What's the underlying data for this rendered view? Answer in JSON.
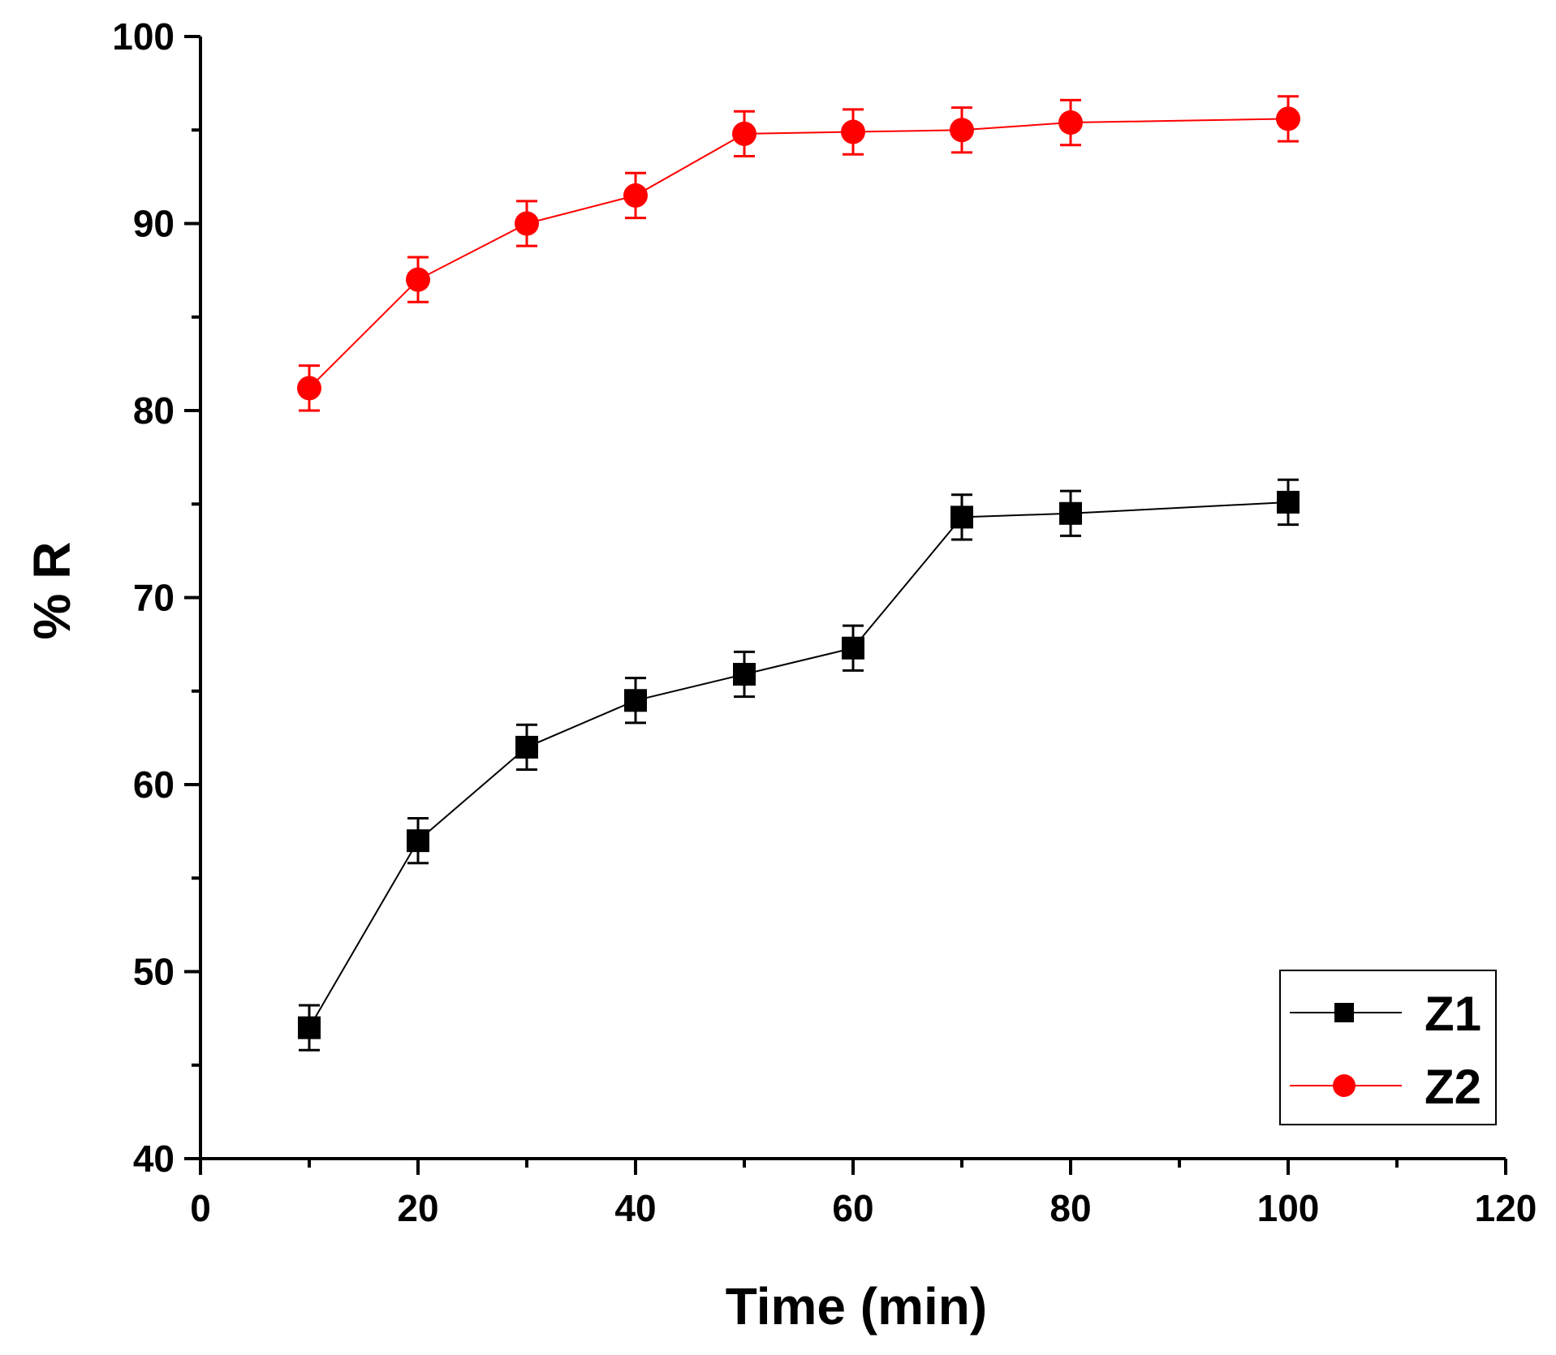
{
  "chart_data": {
    "type": "line",
    "title": "",
    "xlabel": "Time (min)",
    "ylabel": "% R",
    "xlim": [
      0,
      120
    ],
    "ylim": [
      40,
      100
    ],
    "xticks": [
      0,
      20,
      40,
      60,
      80,
      100,
      120
    ],
    "yticks": [
      40,
      50,
      60,
      70,
      80,
      90,
      100
    ],
    "xtick_labels": [
      "0",
      "20",
      "40",
      "60",
      "80",
      "100",
      "120"
    ],
    "ytick_labels": [
      "40",
      "50",
      "60",
      "70",
      "80",
      "90",
      "100"
    ],
    "grid": false,
    "legend_position": "bottom-right",
    "series": [
      {
        "name": "Z1",
        "marker": "square",
        "color": "#000000",
        "x": [
          10,
          20,
          30,
          40,
          50,
          60,
          70,
          80,
          100
        ],
        "y": [
          47.0,
          57.0,
          62.0,
          64.5,
          65.9,
          67.3,
          74.3,
          74.5,
          75.1
        ],
        "error": [
          1.2,
          1.2,
          1.2,
          1.2,
          1.2,
          1.2,
          1.2,
          1.2,
          1.2
        ]
      },
      {
        "name": "Z2",
        "marker": "circle",
        "color": "#ff0000",
        "x": [
          10,
          20,
          30,
          40,
          50,
          60,
          70,
          80,
          100
        ],
        "y": [
          81.2,
          87.0,
          90.0,
          91.5,
          94.8,
          94.9,
          95.0,
          95.4,
          95.6
        ],
        "error": [
          1.2,
          1.2,
          1.2,
          1.2,
          1.2,
          1.2,
          1.2,
          1.2,
          1.2
        ]
      }
    ]
  }
}
